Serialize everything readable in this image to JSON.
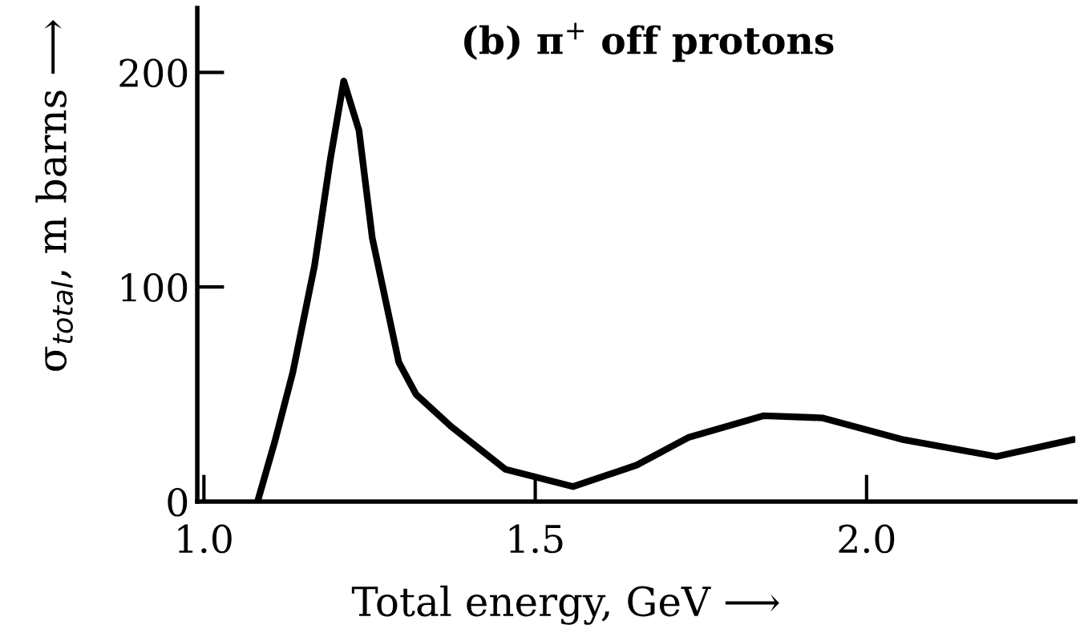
{
  "chart_data": {
    "type": "line",
    "title": "(b) π$^{+}$ off protons",
    "xlabel": "Total energy, GeV ⟶",
    "ylabel": "σ$_{total}$, m barns ⟶",
    "x": [
      1.081,
      1.107,
      1.134,
      1.167,
      1.191,
      1.211,
      1.234,
      1.254,
      1.294,
      1.32,
      1.373,
      1.455,
      1.557,
      1.653,
      1.732,
      1.845,
      1.933,
      2.053,
      2.196,
      2.313
    ],
    "series": [
      {
        "color": "#000000",
        "values": [
          0,
          28,
          60,
          110,
          160,
          196,
          173,
          123,
          65,
          50,
          35,
          15,
          7,
          17,
          30,
          40,
          39,
          29,
          21,
          29
        ]
      }
    ],
    "xlim": [
      0.99,
      2.315
    ],
    "xticks": [
      {
        "value": 1.0,
        "label": "1.0"
      },
      1.5,
      {
        "value": 2.0,
        "label": "2.0"
      }
    ],
    "ylim": [
      0,
      230
    ],
    "yticks": [
      0,
      100,
      200
    ],
    "grid": false,
    "legend": false,
    "marker": "none",
    "line_style": "solid"
  }
}
